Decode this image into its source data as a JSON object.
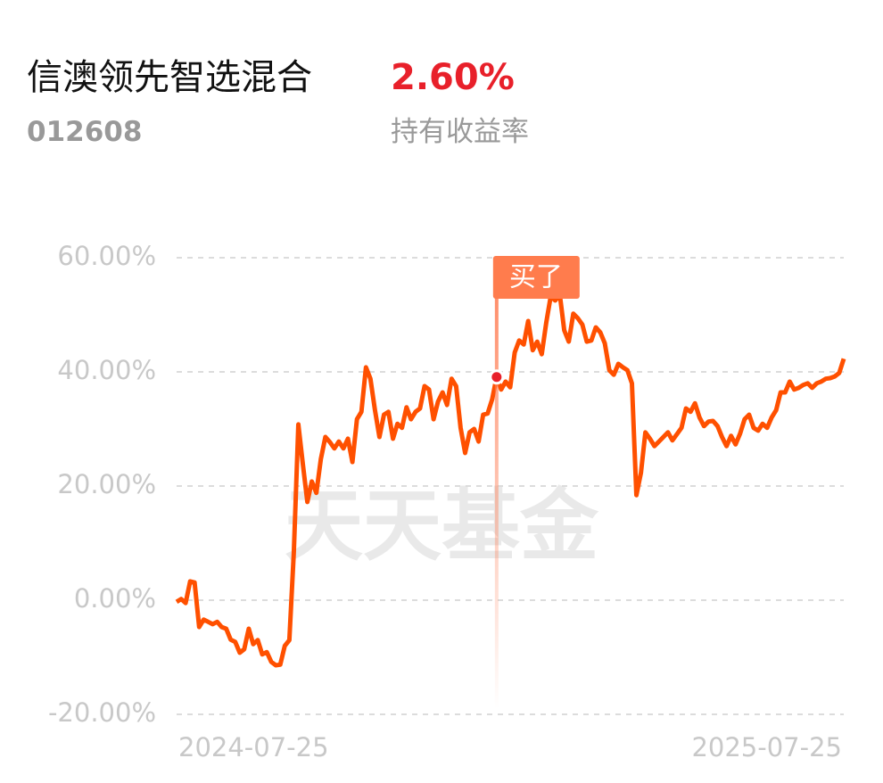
{
  "header": {
    "title": "信澳领先智选混合",
    "code": "012608",
    "return": "2.60%",
    "return_label": "持有收益率"
  },
  "watermark": "天天基金",
  "chart_data": {
    "type": "line",
    "color": "#ff5000",
    "ylim": [
      -20,
      60
    ],
    "yticks": [
      {
        "value": -20,
        "label": "-20.00%"
      },
      {
        "value": 0,
        "label": "0.00%"
      },
      {
        "value": 20,
        "label": "20.00%"
      },
      {
        "value": 40,
        "label": "40.00%"
      },
      {
        "value": 60,
        "label": "60.00%"
      }
    ],
    "grid": true,
    "annotation": {
      "text": "买了",
      "index": 71
    },
    "categories": [
      "2024-07-25",
      null,
      null,
      null,
      null,
      null,
      null,
      null,
      null,
      null,
      null,
      null,
      null,
      null,
      null,
      null,
      null,
      null,
      null,
      null,
      null,
      null,
      null,
      null,
      null,
      null,
      null,
      null,
      null,
      null,
      null,
      null,
      null,
      null,
      null,
      null,
      null,
      null,
      null,
      null,
      null,
      null,
      null,
      null,
      null,
      null,
      null,
      null,
      null,
      null,
      null,
      null,
      null,
      null,
      null,
      null,
      null,
      null,
      null,
      null,
      null,
      null,
      null,
      null,
      null,
      null,
      null,
      null,
      null,
      null,
      null,
      null,
      null,
      null,
      null,
      null,
      null,
      null,
      null,
      null,
      null,
      null,
      null,
      null,
      null,
      null,
      null,
      null,
      null,
      null,
      null,
      null,
      null,
      null,
      null,
      null,
      null,
      null,
      null,
      null,
      null,
      null,
      null,
      null,
      null,
      null,
      null,
      null,
      null,
      null,
      null,
      null,
      null,
      null,
      null,
      null,
      null,
      null,
      null,
      null,
      null,
      null,
      null,
      null,
      null,
      null,
      null,
      null,
      null,
      null,
      null,
      null,
      null,
      null,
      null,
      null,
      null,
      null,
      null,
      null,
      null,
      null,
      null,
      null,
      null,
      null,
      null,
      null,
      "2025-07-25"
    ],
    "values": [
      -0.3,
      0.2,
      -0.5,
      3.3,
      3.1,
      -4.7,
      -3.4,
      -3.8,
      -4.2,
      -3.8,
      -4.7,
      -5.0,
      -6.9,
      -7.3,
      -9.2,
      -8.6,
      -5.0,
      -7.7,
      -7.0,
      -9.5,
      -9.1,
      -10.8,
      -11.4,
      -11.3,
      -8.0,
      -7.0,
      8.3,
      30.8,
      23.9,
      17.2,
      20.8,
      18.8,
      24.7,
      28.6,
      27.7,
      26.6,
      27.8,
      26.6,
      28.3,
      24.2,
      31.7,
      33.0,
      40.8,
      38.8,
      33.3,
      28.6,
      32.5,
      33.0,
      28.3,
      30.9,
      30.2,
      33.8,
      31.7,
      33.0,
      33.6,
      37.5,
      36.9,
      31.7,
      34.8,
      36.4,
      34.2,
      38.8,
      37.5,
      30.2,
      25.8,
      29.4,
      30.0,
      27.8,
      32.5,
      32.7,
      35.2,
      39.1,
      36.9,
      38.3,
      37.3,
      43.4,
      45.5,
      44.8,
      48.9,
      43.8,
      45.3,
      43.1,
      48.6,
      53.3,
      52.5,
      53.6,
      47.3,
      45.3,
      50.2,
      49.4,
      48.3,
      45.3,
      45.5,
      47.8,
      46.9,
      45.0,
      40.3,
      39.5,
      41.4,
      40.8,
      40.3,
      38.0,
      18.4,
      22.3,
      29.4,
      28.3,
      27.0,
      27.8,
      28.6,
      29.4,
      28.0,
      29.1,
      30.2,
      33.6,
      33.0,
      34.5,
      32.0,
      30.5,
      31.3,
      31.4,
      30.5,
      28.6,
      27.0,
      28.8,
      27.3,
      29.2,
      31.7,
      32.5,
      30.2,
      29.7,
      30.9,
      30.2,
      32.0,
      33.3,
      36.4,
      36.4,
      38.3,
      36.9,
      37.2,
      37.7,
      38.0,
      37.2,
      38.0,
      38.3,
      38.8,
      38.9,
      39.2,
      39.8,
      42.3
    ]
  }
}
